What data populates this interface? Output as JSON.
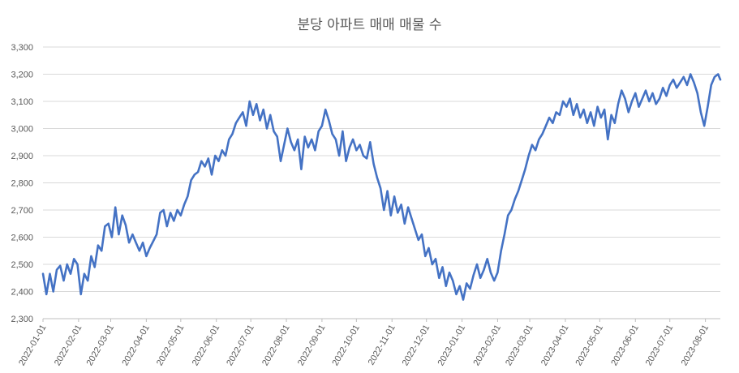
{
  "chart_data": {
    "type": "line",
    "title": "분당 아파트 매매 매물 수",
    "ylim": [
      2300,
      3300
    ],
    "yticks": [
      "2,300",
      "2,400",
      "2,500",
      "2,600",
      "2,700",
      "2,800",
      "2,900",
      "3,000",
      "3,100",
      "3,200",
      "3,300"
    ],
    "yticks_values": [
      2300,
      2400,
      2500,
      2600,
      2700,
      2800,
      2900,
      3000,
      3100,
      3200,
      3300
    ],
    "xlim": [
      "2022-01-01",
      "2023-08-14"
    ],
    "xticks": [
      "2022-01-01",
      "2022-02-01",
      "2022-03-01",
      "2022-04-01",
      "2022-05-01",
      "2022-06-01",
      "2022-07-01",
      "2022-08-01",
      "2022-09-01",
      "2022-10-01",
      "2022-11-01",
      "2022-12-01",
      "2023-01-01",
      "2023-02-01",
      "2023-03-01",
      "2023-04-01",
      "2023-05-01",
      "2023-06-01",
      "2023-07-01",
      "2023-08-01"
    ],
    "grid": true,
    "series": [
      {
        "color": "#4472C4",
        "points": [
          [
            "2022-01-01",
            2465
          ],
          [
            "2022-01-04",
            2390
          ],
          [
            "2022-01-07",
            2465
          ],
          [
            "2022-01-10",
            2400
          ],
          [
            "2022-01-13",
            2480
          ],
          [
            "2022-01-16",
            2495
          ],
          [
            "2022-01-19",
            2440
          ],
          [
            "2022-01-22",
            2500
          ],
          [
            "2022-01-25",
            2465
          ],
          [
            "2022-01-28",
            2520
          ],
          [
            "2022-01-31",
            2500
          ],
          [
            "2022-02-03",
            2390
          ],
          [
            "2022-02-06",
            2465
          ],
          [
            "2022-02-09",
            2440
          ],
          [
            "2022-02-12",
            2530
          ],
          [
            "2022-02-15",
            2490
          ],
          [
            "2022-02-18",
            2570
          ],
          [
            "2022-02-21",
            2550
          ],
          [
            "2022-02-24",
            2640
          ],
          [
            "2022-02-27",
            2650
          ],
          [
            "2022-03-02",
            2600
          ],
          [
            "2022-03-05",
            2710
          ],
          [
            "2022-03-08",
            2610
          ],
          [
            "2022-03-11",
            2680
          ],
          [
            "2022-03-14",
            2645
          ],
          [
            "2022-03-17",
            2580
          ],
          [
            "2022-03-20",
            2610
          ],
          [
            "2022-03-23",
            2580
          ],
          [
            "2022-03-26",
            2550
          ],
          [
            "2022-03-29",
            2580
          ],
          [
            "2022-04-01",
            2530
          ],
          [
            "2022-04-04",
            2560
          ],
          [
            "2022-04-07",
            2585
          ],
          [
            "2022-04-10",
            2610
          ],
          [
            "2022-04-13",
            2690
          ],
          [
            "2022-04-16",
            2700
          ],
          [
            "2022-04-19",
            2640
          ],
          [
            "2022-04-22",
            2690
          ],
          [
            "2022-04-25",
            2660
          ],
          [
            "2022-04-28",
            2700
          ],
          [
            "2022-05-01",
            2680
          ],
          [
            "2022-05-04",
            2720
          ],
          [
            "2022-05-07",
            2750
          ],
          [
            "2022-05-10",
            2810
          ],
          [
            "2022-05-13",
            2830
          ],
          [
            "2022-05-16",
            2840
          ],
          [
            "2022-05-19",
            2880
          ],
          [
            "2022-05-22",
            2860
          ],
          [
            "2022-05-25",
            2890
          ],
          [
            "2022-05-28",
            2830
          ],
          [
            "2022-05-31",
            2900
          ],
          [
            "2022-06-03",
            2880
          ],
          [
            "2022-06-06",
            2920
          ],
          [
            "2022-06-09",
            2900
          ],
          [
            "2022-06-12",
            2960
          ],
          [
            "2022-06-15",
            2980
          ],
          [
            "2022-06-18",
            3020
          ],
          [
            "2022-06-21",
            3040
          ],
          [
            "2022-06-24",
            3060
          ],
          [
            "2022-06-27",
            3010
          ],
          [
            "2022-06-30",
            3100
          ],
          [
            "2022-07-03",
            3050
          ],
          [
            "2022-07-06",
            3090
          ],
          [
            "2022-07-09",
            3030
          ],
          [
            "2022-07-12",
            3070
          ],
          [
            "2022-07-15",
            3000
          ],
          [
            "2022-07-18",
            3050
          ],
          [
            "2022-07-21",
            2990
          ],
          [
            "2022-07-24",
            2970
          ],
          [
            "2022-07-27",
            2880
          ],
          [
            "2022-07-30",
            2940
          ],
          [
            "2022-08-02",
            3000
          ],
          [
            "2022-08-05",
            2950
          ],
          [
            "2022-08-08",
            2920
          ],
          [
            "2022-08-11",
            2960
          ],
          [
            "2022-08-14",
            2850
          ],
          [
            "2022-08-17",
            2970
          ],
          [
            "2022-08-20",
            2930
          ],
          [
            "2022-08-23",
            2960
          ],
          [
            "2022-08-26",
            2920
          ],
          [
            "2022-08-29",
            2990
          ],
          [
            "2022-09-01",
            3010
          ],
          [
            "2022-09-04",
            3070
          ],
          [
            "2022-09-07",
            3030
          ],
          [
            "2022-09-10",
            2980
          ],
          [
            "2022-09-13",
            2960
          ],
          [
            "2022-09-16",
            2900
          ],
          [
            "2022-09-19",
            2990
          ],
          [
            "2022-09-22",
            2880
          ],
          [
            "2022-09-25",
            2930
          ],
          [
            "2022-09-28",
            2960
          ],
          [
            "2022-10-01",
            2920
          ],
          [
            "2022-10-04",
            2940
          ],
          [
            "2022-10-07",
            2900
          ],
          [
            "2022-10-10",
            2890
          ],
          [
            "2022-10-13",
            2950
          ],
          [
            "2022-10-16",
            2870
          ],
          [
            "2022-10-19",
            2820
          ],
          [
            "2022-10-22",
            2780
          ],
          [
            "2022-10-25",
            2700
          ],
          [
            "2022-10-28",
            2770
          ],
          [
            "2022-10-31",
            2680
          ],
          [
            "2022-11-03",
            2750
          ],
          [
            "2022-11-06",
            2690
          ],
          [
            "2022-11-09",
            2720
          ],
          [
            "2022-11-12",
            2650
          ],
          [
            "2022-11-15",
            2710
          ],
          [
            "2022-11-18",
            2670
          ],
          [
            "2022-11-21",
            2630
          ],
          [
            "2022-11-24",
            2590
          ],
          [
            "2022-11-27",
            2610
          ],
          [
            "2022-11-30",
            2530
          ],
          [
            "2022-12-03",
            2560
          ],
          [
            "2022-12-06",
            2500
          ],
          [
            "2022-12-09",
            2520
          ],
          [
            "2022-12-12",
            2450
          ],
          [
            "2022-12-15",
            2490
          ],
          [
            "2022-12-18",
            2420
          ],
          [
            "2022-12-21",
            2470
          ],
          [
            "2022-12-24",
            2440
          ],
          [
            "2022-12-27",
            2390
          ],
          [
            "2022-12-30",
            2420
          ],
          [
            "2023-01-02",
            2370
          ],
          [
            "2023-01-05",
            2430
          ],
          [
            "2023-01-08",
            2410
          ],
          [
            "2023-01-11",
            2460
          ],
          [
            "2023-01-14",
            2500
          ],
          [
            "2023-01-17",
            2450
          ],
          [
            "2023-01-20",
            2480
          ],
          [
            "2023-01-23",
            2520
          ],
          [
            "2023-01-26",
            2470
          ],
          [
            "2023-01-29",
            2440
          ],
          [
            "2023-02-01",
            2470
          ],
          [
            "2023-02-04",
            2550
          ],
          [
            "2023-02-07",
            2610
          ],
          [
            "2023-02-10",
            2680
          ],
          [
            "2023-02-13",
            2700
          ],
          [
            "2023-02-16",
            2740
          ],
          [
            "2023-02-19",
            2770
          ],
          [
            "2023-02-22",
            2810
          ],
          [
            "2023-02-25",
            2850
          ],
          [
            "2023-02-28",
            2900
          ],
          [
            "2023-03-03",
            2940
          ],
          [
            "2023-03-06",
            2920
          ],
          [
            "2023-03-09",
            2960
          ],
          [
            "2023-03-12",
            2980
          ],
          [
            "2023-03-15",
            3010
          ],
          [
            "2023-03-18",
            3040
          ],
          [
            "2023-03-21",
            3020
          ],
          [
            "2023-03-24",
            3060
          ],
          [
            "2023-03-27",
            3050
          ],
          [
            "2023-03-30",
            3100
          ],
          [
            "2023-04-02",
            3080
          ],
          [
            "2023-04-05",
            3110
          ],
          [
            "2023-04-08",
            3050
          ],
          [
            "2023-04-11",
            3090
          ],
          [
            "2023-04-14",
            3040
          ],
          [
            "2023-04-17",
            3070
          ],
          [
            "2023-04-20",
            3020
          ],
          [
            "2023-04-23",
            3060
          ],
          [
            "2023-04-26",
            3010
          ],
          [
            "2023-04-29",
            3080
          ],
          [
            "2023-05-02",
            3040
          ],
          [
            "2023-05-05",
            3070
          ],
          [
            "2023-05-08",
            2960
          ],
          [
            "2023-05-11",
            3050
          ],
          [
            "2023-05-14",
            3020
          ],
          [
            "2023-05-17",
            3090
          ],
          [
            "2023-05-20",
            3140
          ],
          [
            "2023-05-23",
            3110
          ],
          [
            "2023-05-26",
            3060
          ],
          [
            "2023-05-29",
            3100
          ],
          [
            "2023-06-01",
            3130
          ],
          [
            "2023-06-04",
            3080
          ],
          [
            "2023-06-07",
            3110
          ],
          [
            "2023-06-10",
            3140
          ],
          [
            "2023-06-13",
            3100
          ],
          [
            "2023-06-16",
            3130
          ],
          [
            "2023-06-19",
            3090
          ],
          [
            "2023-06-22",
            3110
          ],
          [
            "2023-06-25",
            3150
          ],
          [
            "2023-06-28",
            3120
          ],
          [
            "2023-07-01",
            3160
          ],
          [
            "2023-07-04",
            3180
          ],
          [
            "2023-07-07",
            3150
          ],
          [
            "2023-07-10",
            3170
          ],
          [
            "2023-07-13",
            3190
          ],
          [
            "2023-07-16",
            3160
          ],
          [
            "2023-07-19",
            3200
          ],
          [
            "2023-07-22",
            3170
          ],
          [
            "2023-07-25",
            3130
          ],
          [
            "2023-07-28",
            3060
          ],
          [
            "2023-07-31",
            3010
          ],
          [
            "2023-08-03",
            3080
          ],
          [
            "2023-08-06",
            3160
          ],
          [
            "2023-08-09",
            3190
          ],
          [
            "2023-08-12",
            3200
          ],
          [
            "2023-08-14",
            3180
          ]
        ]
      }
    ]
  }
}
